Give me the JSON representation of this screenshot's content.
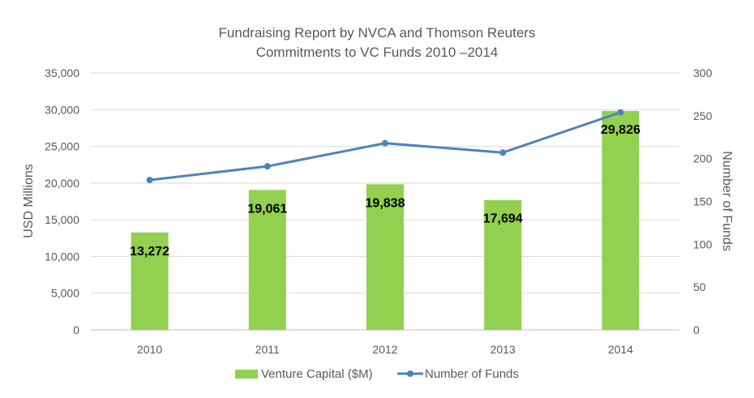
{
  "chart_data": {
    "type": "bar+line",
    "title": "Fundraising Report by NVCA and Thomson Reuters",
    "subtitle": "Commitments to VC Funds 2010 –2014",
    "categories": [
      "2010",
      "2011",
      "2012",
      "2013",
      "2014"
    ],
    "series": [
      {
        "name": "Venture Capital ($M)",
        "type": "bar",
        "axis": "left",
        "values": [
          13272,
          19061,
          19838,
          17694,
          29826
        ],
        "labels": [
          "13,272",
          "19,061",
          "19,838",
          "17,694",
          "29,826"
        ]
      },
      {
        "name": "Number of Funds",
        "type": "line",
        "axis": "right",
        "values": [
          175,
          191,
          218,
          207,
          254
        ]
      }
    ],
    "ylabel": "USD Millions",
    "y2label": "Number of Funds",
    "ylim": [
      0,
      35000
    ],
    "y2lim": [
      0,
      300
    ],
    "yticks": [
      "0",
      "5,000",
      "10,000",
      "15,000",
      "20,000",
      "25,000",
      "30,000",
      "35,000"
    ],
    "y2ticks": [
      "0",
      "50",
      "100",
      "150",
      "200",
      "250",
      "300"
    ],
    "grid": true,
    "legend": "bottom",
    "colors": {
      "bar": "#92d050",
      "line": "#4f81bd"
    }
  }
}
